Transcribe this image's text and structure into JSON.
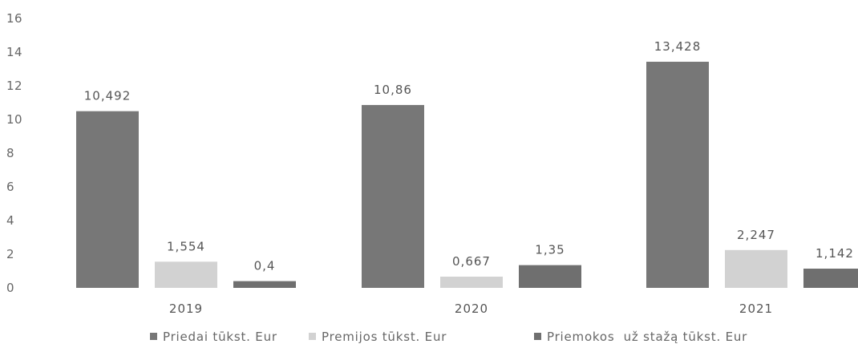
{
  "chart_data": {
    "type": "bar",
    "categories": [
      "2019",
      "2020",
      "2021"
    ],
    "series": [
      {
        "name": "Priedai tūkst. Eur",
        "values": [
          10.492,
          10.86,
          13.428
        ],
        "labels": [
          "10,492",
          "10,86",
          "13,428"
        ],
        "color": "#777777"
      },
      {
        "name": "Premijos tūkst. Eur",
        "values": [
          1.554,
          0.667,
          2.247
        ],
        "labels": [
          "1,554",
          "0,667",
          "2,247"
        ],
        "color": "#d2d2d2"
      },
      {
        "name": "Priemokos  už stažą tūkst. Eur",
        "values": [
          0.4,
          1.35,
          1.142
        ],
        "labels": [
          "0,4",
          "1,35",
          "1,142"
        ],
        "color": "#6f6f6f"
      }
    ],
    "yticks": [
      "0",
      "2",
      "4",
      "6",
      "8",
      "10",
      "12",
      "14",
      "16"
    ],
    "ylim": [
      0,
      16
    ],
    "grid": false,
    "legend": "bottom"
  }
}
